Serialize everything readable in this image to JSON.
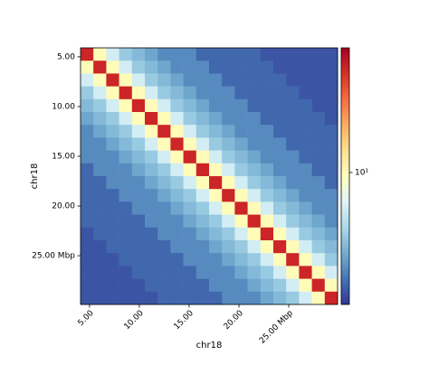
{
  "chart_data": {
    "type": "heatmap",
    "xlabel": "chr18",
    "ylabel": "chr18",
    "xlim": [
      4.1,
      29.9
    ],
    "ylim": [
      4.1,
      29.9
    ],
    "xticks": [
      {
        "value": 5,
        "label": "5.00"
      },
      {
        "value": 10,
        "label": "10.00"
      },
      {
        "value": 15,
        "label": "15.00"
      },
      {
        "value": 20,
        "label": "20.00"
      },
      {
        "value": 25,
        "label": "25.00  Mbp"
      }
    ],
    "yticks": [
      {
        "value": 5,
        "label": "5.00"
      },
      {
        "value": 10,
        "label": "10.00"
      },
      {
        "value": 15,
        "label": "15.00"
      },
      {
        "value": 20,
        "label": "20.00"
      },
      {
        "value": 25,
        "label": "25.00  Mbp"
      }
    ],
    "clim": [
      1.5,
      60
    ],
    "color_scale": "log",
    "cticks": [
      {
        "value": 10,
        "label": "10¹"
      }
    ],
    "colormap": [
      "#313695",
      "#4575b4",
      "#74add1",
      "#abd9e9",
      "#e0f3f8",
      "#ffffbf",
      "#fee090",
      "#fdae61",
      "#f46d43",
      "#d73027",
      "#a50026"
    ],
    "matrix": [
      [
        45,
        10,
        6,
        4,
        3.5,
        3,
        2.5,
        2.5,
        2.5,
        2,
        2,
        2,
        2,
        2,
        1.8,
        1.8,
        1.8,
        1.8,
        1.8,
        1.8
      ],
      [
        10,
        45,
        10,
        6,
        4,
        3.5,
        3,
        2.5,
        2.5,
        2.5,
        2,
        2,
        2,
        2,
        2,
        1.8,
        1.8,
        1.8,
        1.8,
        1.8
      ],
      [
        6,
        10,
        45,
        10,
        6,
        4,
        3.5,
        3,
        2.5,
        2.5,
        2.5,
        2,
        2,
        2,
        2,
        2,
        1.8,
        1.8,
        1.8,
        1.8
      ],
      [
        4,
        6,
        10,
        45,
        10,
        6,
        4,
        3.5,
        3,
        2.5,
        2.5,
        2.5,
        2,
        2,
        2,
        2,
        2,
        1.8,
        1.8,
        1.8
      ],
      [
        3.5,
        4,
        6,
        10,
        45,
        10,
        6,
        4,
        3.5,
        3,
        2.5,
        2.5,
        2.5,
        2,
        2,
        2,
        2,
        2,
        1.8,
        1.8
      ],
      [
        3,
        3.5,
        4,
        6,
        10,
        45,
        10,
        6,
        4,
        3.5,
        3,
        2.5,
        2.5,
        2.5,
        2,
        2,
        2,
        2,
        2,
        1.8
      ],
      [
        2.5,
        3,
        3.5,
        4,
        6,
        10,
        45,
        10,
        6,
        4,
        3.5,
        3,
        2.5,
        2.5,
        2.5,
        2,
        2,
        2,
        2,
        2
      ],
      [
        2.5,
        2.5,
        3,
        3.5,
        4,
        6,
        10,
        45,
        10,
        6,
        4,
        3.5,
        3,
        2.5,
        2.5,
        2.5,
        2,
        2,
        2,
        2
      ],
      [
        2.5,
        2.5,
        2.5,
        3,
        3.5,
        4,
        6,
        10,
        45,
        10,
        6,
        4,
        3.5,
        3,
        2.5,
        2.5,
        2.5,
        2,
        2,
        2
      ],
      [
        2,
        2.5,
        2.5,
        2.5,
        3,
        3.5,
        4,
        6,
        10,
        45,
        10,
        6,
        4,
        3.5,
        3,
        2.5,
        2.5,
        2.5,
        2,
        2
      ],
      [
        2,
        2,
        2.5,
        2.5,
        2.5,
        3,
        3.5,
        4,
        6,
        10,
        45,
        10,
        6,
        4,
        3.5,
        3,
        2.5,
        2.5,
        2.5,
        2
      ],
      [
        2,
        2,
        2,
        2.5,
        2.5,
        2.5,
        3,
        3.5,
        4,
        6,
        10,
        45,
        10,
        6,
        4,
        3.5,
        3,
        2.5,
        2.5,
        2.5
      ],
      [
        2,
        2,
        2,
        2,
        2.5,
        2.5,
        2.5,
        3,
        3.5,
        4,
        6,
        10,
        45,
        10,
        6,
        4,
        3.5,
        3,
        2.5,
        2.5
      ],
      [
        2,
        2,
        2,
        2,
        2,
        2.5,
        2.5,
        2.5,
        3,
        3.5,
        4,
        6,
        10,
        45,
        10,
        6,
        4,
        3.5,
        3,
        2.5
      ],
      [
        1.8,
        2,
        2,
        2,
        2,
        2,
        2.5,
        2.5,
        2.5,
        3,
        3.5,
        4,
        6,
        10,
        45,
        10,
        6,
        4,
        3.5,
        3
      ],
      [
        1.8,
        1.8,
        2,
        2,
        2,
        2,
        2,
        2.5,
        2.5,
        2.5,
        3,
        3.5,
        4,
        6,
        10,
        45,
        10,
        6,
        4,
        3.5
      ],
      [
        1.8,
        1.8,
        1.8,
        2,
        2,
        2,
        2,
        2,
        2.5,
        2.5,
        2.5,
        3,
        3.5,
        4,
        6,
        10,
        45,
        10,
        6,
        4
      ],
      [
        1.8,
        1.8,
        1.8,
        1.8,
        2,
        2,
        2,
        2,
        2,
        2.5,
        2.5,
        2.5,
        3,
        3.5,
        4,
        6,
        10,
        45,
        10,
        6
      ],
      [
        1.8,
        1.8,
        1.8,
        1.8,
        1.8,
        2,
        2,
        2,
        2,
        2,
        2.5,
        2.5,
        2.5,
        3,
        3.5,
        4,
        6,
        10,
        45,
        10
      ],
      [
        1.8,
        1.8,
        1.8,
        1.8,
        1.8,
        1.8,
        2,
        2,
        2,
        2,
        2,
        2.5,
        2.5,
        2.5,
        3,
        3.5,
        4,
        6,
        10,
        45
      ]
    ]
  }
}
